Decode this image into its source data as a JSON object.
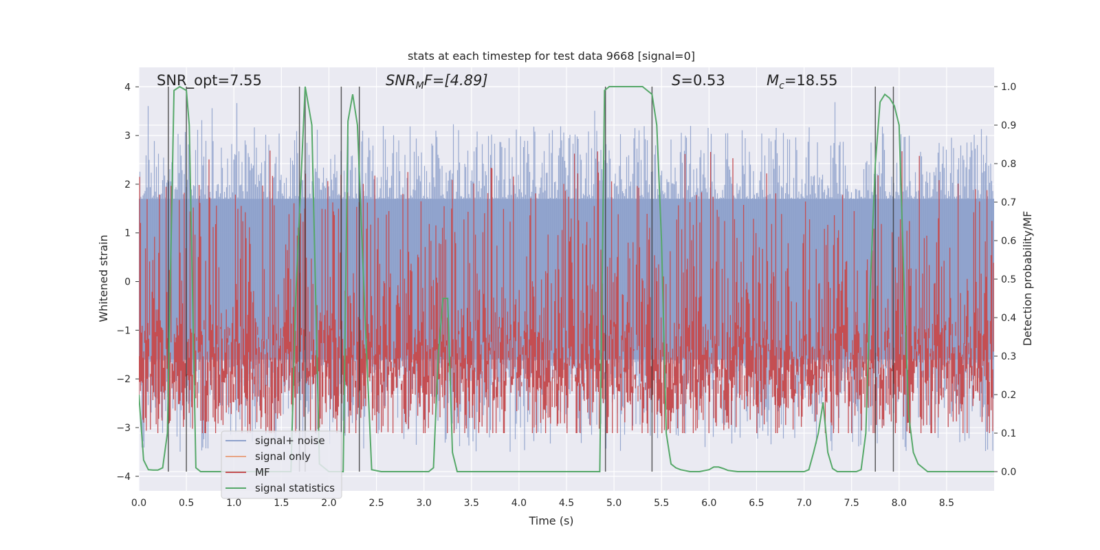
{
  "chart_data": {
    "type": "line",
    "title": "stats at each timestep for test data 9668 [signal=0]",
    "xlabel": "Time (s)",
    "ylabel_left": "Whitened strain",
    "ylabel_right": "Detection probability/MF",
    "xlim": [
      0.0,
      9.0
    ],
    "ylim_left": [
      -4.3,
      4.4
    ],
    "ylim_right": [
      -0.05,
      1.05
    ],
    "grid": true,
    "legend_position": "lower-left",
    "x_ticks": [
      "0.0",
      "0.5",
      "1.0",
      "1.5",
      "2.0",
      "2.5",
      "3.0",
      "3.5",
      "4.0",
      "4.5",
      "5.0",
      "5.5",
      "6.0",
      "6.5",
      "7.0",
      "7.5",
      "8.0",
      "8.5"
    ],
    "x_tick_values": [
      0.0,
      0.5,
      1.0,
      1.5,
      2.0,
      2.5,
      3.0,
      3.5,
      4.0,
      4.5,
      5.0,
      5.5,
      6.0,
      6.5,
      7.0,
      7.5,
      8.0,
      8.5
    ],
    "y_left_ticks": [
      "4",
      "3",
      "2",
      "1",
      "0",
      "−1",
      "−2",
      "−3",
      "−4"
    ],
    "y_left_tick_values": [
      4,
      3,
      2,
      1,
      0,
      -1,
      -2,
      -3,
      -4
    ],
    "y_right_ticks": [
      "1.0",
      "0.9",
      "0.8",
      "0.7",
      "0.6",
      "0.5",
      "0.4",
      "0.3",
      "0.2",
      "0.1",
      "0.0"
    ],
    "y_right_tick_values": [
      1.0,
      0.9,
      0.8,
      0.7,
      0.6,
      0.5,
      0.4,
      0.3,
      0.2,
      0.1,
      0.0
    ],
    "annotations": {
      "snr_opt": "SNR_opt=7.55",
      "snr_mf_main": "SNR",
      "snr_mf_sub": "M",
      "snr_mf_rest": "F=[4.89]",
      "s_main": "S",
      "s_rest": "=0.53",
      "mc_main": "M",
      "mc_sub": "c",
      "mc_rest": "=18.55"
    },
    "series": [
      {
        "name": "signal+ noise",
        "color": "#8da0cb",
        "style": "noise",
        "band_lower": -1.6,
        "band_upper": 1.7,
        "typical_spike_max": 3.2,
        "typical_spike_min": -3.5
      },
      {
        "name": "signal only",
        "color": "#e8a585",
        "values": []
      },
      {
        "name": "MF",
        "color": "#c44e52",
        "style": "noise",
        "band_lower": 0.1,
        "band_upper": 0.5,
        "typical_spike_max": 0.85
      },
      {
        "name": "signal statistics",
        "color": "#55a868",
        "x": [
          0.0,
          0.05,
          0.1,
          0.15,
          0.2,
          0.25,
          0.3,
          0.37,
          0.43,
          0.5,
          0.53,
          0.6,
          0.65,
          0.7,
          0.8,
          0.9,
          1.0,
          1.1,
          1.2,
          1.3,
          1.4,
          1.5,
          1.6,
          1.65,
          1.75,
          1.82,
          1.9,
          2.0,
          2.05,
          2.15,
          2.2,
          2.25,
          2.3,
          2.38,
          2.45,
          2.55,
          2.7,
          2.9,
          3.05,
          3.1,
          3.15,
          3.2,
          3.25,
          3.3,
          3.35,
          3.5,
          3.8,
          4.2,
          4.6,
          4.8,
          4.85,
          4.9,
          4.95,
          5.0,
          5.3,
          5.35,
          5.4,
          5.45,
          5.5,
          5.55,
          5.6,
          5.65,
          5.7,
          5.8,
          5.9,
          6.0,
          6.05,
          6.1,
          6.15,
          6.2,
          6.3,
          6.5,
          6.8,
          7.0,
          7.05,
          7.1,
          7.15,
          7.2,
          7.25,
          7.3,
          7.35,
          7.45,
          7.55,
          7.6,
          7.65,
          7.7,
          7.75,
          7.8,
          7.85,
          7.9,
          7.95,
          8.0,
          8.05,
          8.1,
          8.15,
          8.2,
          8.25,
          8.3,
          8.4,
          8.6,
          8.8,
          9.0
        ],
        "values": [
          0.2,
          0.03,
          0.005,
          0.004,
          0.004,
          0.01,
          0.1,
          0.99,
          1.0,
          0.99,
          0.9,
          0.01,
          0.0,
          0.0,
          0.0,
          0.0,
          0.0,
          0.0,
          0.0,
          0.0,
          0.0,
          0.0,
          0.0,
          0.45,
          1.0,
          0.9,
          0.02,
          0.0,
          0.0,
          0.0,
          0.91,
          0.98,
          0.9,
          0.4,
          0.005,
          0.0,
          0.0,
          0.0,
          0.0,
          0.01,
          0.3,
          0.45,
          0.45,
          0.05,
          0.0,
          0.0,
          0.0,
          0.0,
          0.0,
          0.0,
          0.0,
          0.99,
          1.0,
          1.0,
          1.0,
          0.99,
          0.98,
          0.9,
          0.6,
          0.1,
          0.02,
          0.01,
          0.005,
          0.0,
          0.0,
          0.005,
          0.012,
          0.012,
          0.008,
          0.003,
          0.0,
          0.0,
          0.0,
          0.0,
          0.005,
          0.05,
          0.1,
          0.18,
          0.05,
          0.008,
          0.0,
          0.0,
          0.0,
          0.005,
          0.1,
          0.5,
          0.8,
          0.96,
          0.98,
          0.97,
          0.95,
          0.9,
          0.5,
          0.15,
          0.05,
          0.02,
          0.01,
          0.0,
          0.0,
          0.0,
          0.0,
          0.0
        ]
      }
    ],
    "vertical_lines_x": [
      0.31,
      0.5,
      1.69,
      1.75,
      2.13,
      2.32,
      4.91,
      5.4,
      7.75,
      7.94
    ]
  }
}
